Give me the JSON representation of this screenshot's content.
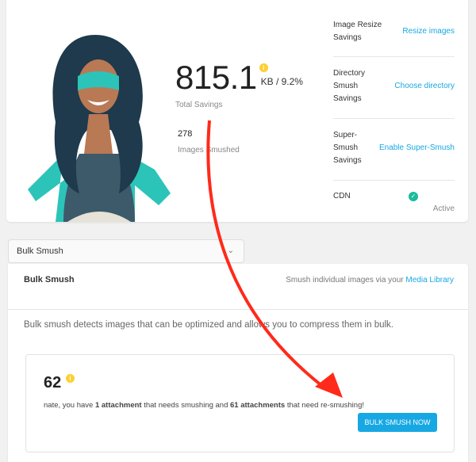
{
  "summary": {
    "total_value": "815.1",
    "total_unit": "KB / 9.2%",
    "total_label": "Total Savings",
    "images_count": "278",
    "images_label": "Images Smushed"
  },
  "right": [
    {
      "label": "Image Resize Savings",
      "action": "Resize images"
    },
    {
      "label": "Directory Smush Savings",
      "action": "Choose directory"
    },
    {
      "label": "Super-Smush Savings",
      "action": "Enable Super-Smush"
    },
    {
      "label": "CDN",
      "status": "Active"
    }
  ],
  "dropdown": {
    "selected": "Bulk Smush"
  },
  "bulk": {
    "title": "Bulk Smush",
    "hint": "Smush individual images via your",
    "hint_link": "Media Library",
    "description": "Bulk smush detects images that can be optimized and allows you to compress them in bulk.",
    "count": "62",
    "msg_a": "nate, you have ",
    "msg_b": "1 attachment",
    "msg_c": " that needs smushing and ",
    "msg_d": "61 attachments",
    "msg_e": " that need re-smushing!",
    "button": "BULK SMUSH NOW"
  },
  "colors": {
    "accent": "#17a8e3",
    "info": "#fecf2f",
    "success": "#1abc9c",
    "annotation_arrow": "#ff2a1a"
  }
}
